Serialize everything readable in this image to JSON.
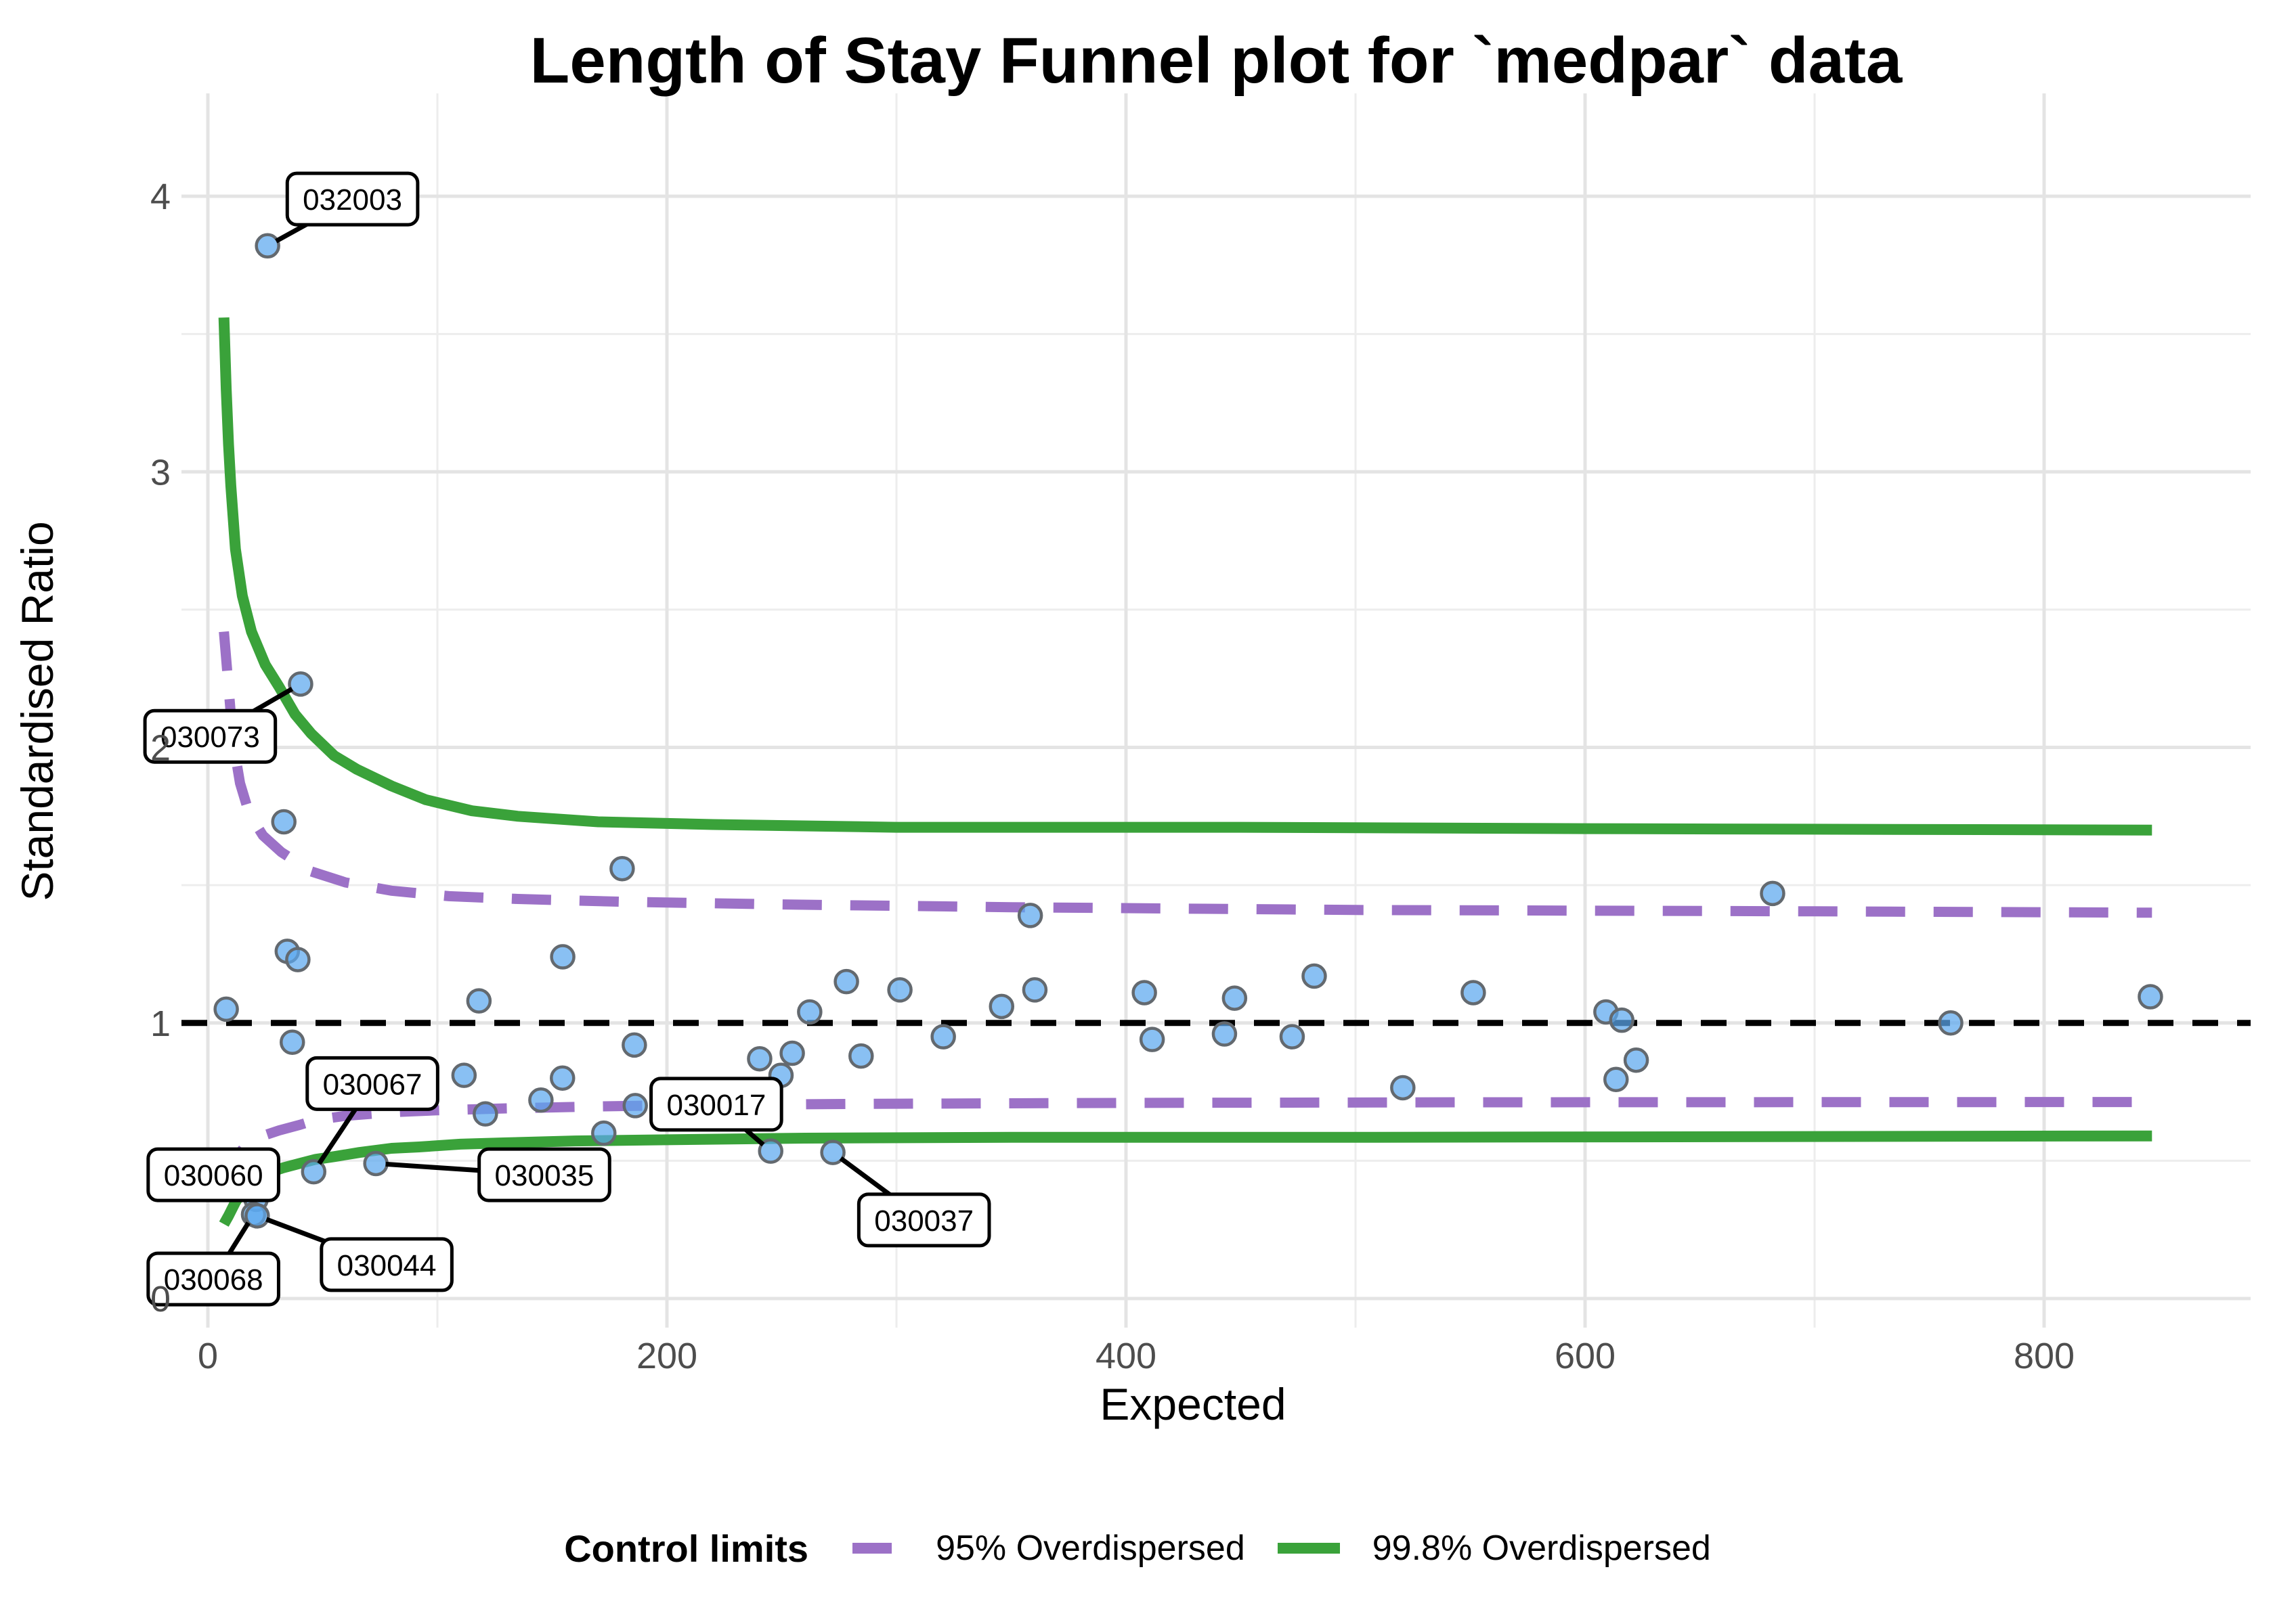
{
  "title": "Length of Stay Funnel plot for `medpar` data",
  "legend": {
    "title": "Control limits",
    "items": [
      {
        "label": "95% Overdispersed",
        "color": "#9C71C7",
        "dash": true
      },
      {
        "label": "99.8% Overdispersed",
        "color": "#3AA23A",
        "dash": false
      }
    ]
  },
  "style": {
    "limit95_color": "#9C71C7",
    "limit998_color": "#3AA23A",
    "point_fill": "#5CA7EE",
    "point_stroke": "#63696F",
    "reference_color": "#000000",
    "grid_major": "#E4E4E4",
    "grid_minor": "#EDEDED",
    "tick_color": "#4D4D4D",
    "label_box_fill": "#FFFFFF",
    "label_box_border": "#000000"
  },
  "chart_data": {
    "type": "scatter",
    "title": "Length of Stay Funnel plot for `medpar` data",
    "xlabel": "Expected",
    "ylabel": "Standardised Ratio",
    "xlim": [
      -11,
      890
    ],
    "ylim": [
      -0.1,
      4.37
    ],
    "x_ticks": [
      0,
      200,
      400,
      600,
      800
    ],
    "y_ticks": [
      0,
      1,
      2,
      3,
      4
    ],
    "x_minor": [
      100,
      300,
      500,
      700
    ],
    "y_minor": [
      0.5,
      1.5,
      2.5,
      3.5
    ],
    "grid": true,
    "legend_position": "bottom",
    "reference_line_y": 1,
    "points": [
      [
        8,
        1.05
      ],
      [
        34.6,
        1.26
      ],
      [
        39.2,
        1.23
      ],
      [
        33.1,
        1.73
      ],
      [
        36.8,
        0.93
      ],
      [
        111.6,
        0.81
      ],
      [
        118.1,
        1.08
      ],
      [
        120.9,
        0.67
      ],
      [
        145.1,
        0.72
      ],
      [
        154.5,
        0.8
      ],
      [
        154.6,
        1.24
      ],
      [
        172.5,
        0.6
      ],
      [
        180.5,
        1.56
      ],
      [
        185.8,
        0.92
      ],
      [
        186.2,
        0.7
      ],
      [
        240.4,
        0.87
      ],
      [
        249.7,
        0.81
      ],
      [
        254.6,
        0.89
      ],
      [
        262.2,
        1.04
      ],
      [
        278.2,
        1.15
      ],
      [
        284.6,
        0.88
      ],
      [
        301.5,
        1.12
      ],
      [
        320.4,
        0.95
      ],
      [
        345.8,
        1.06
      ],
      [
        358.3,
        1.39
      ],
      [
        360.3,
        1.12
      ],
      [
        408,
        1.11
      ],
      [
        411.4,
        0.94
      ],
      [
        442.9,
        0.96
      ],
      [
        447.3,
        1.09
      ],
      [
        472.4,
        0.95
      ],
      [
        482,
        1.17
      ],
      [
        520.6,
        0.765
      ],
      [
        551.3,
        1.11
      ],
      [
        609.1,
        1.04
      ],
      [
        616,
        1.01
      ],
      [
        622.3,
        0.865
      ],
      [
        613.5,
        0.795
      ],
      [
        681.7,
        1.47
      ],
      [
        759.3,
        1.0
      ],
      [
        846.3,
        1.095
      ]
    ],
    "labeled_points": [
      {
        "id": "032003",
        "x": 26,
        "y": 3.82,
        "label_at": [
          63,
          3.99
        ]
      },
      {
        "id": "030073",
        "x": 40.4,
        "y": 2.23,
        "label_at": [
          1,
          2.04
        ]
      },
      {
        "id": "030067",
        "x": 46.1,
        "y": 0.46,
        "label_at": [
          71.7,
          0.78
        ]
      },
      {
        "id": "030060",
        "x": 21,
        "y": 0.36,
        "label_at": [
          2.4,
          0.449
        ]
      },
      {
        "id": "030068",
        "x": 19.9,
        "y": 0.305,
        "label_at": [
          2.4,
          0.071
        ]
      },
      {
        "id": "030044",
        "x": 21.5,
        "y": 0.3,
        "label_at": [
          77.9,
          0.123
        ]
      },
      {
        "id": "030035",
        "x": 73.2,
        "y": 0.49,
        "label_at": [
          146.6,
          0.449
        ]
      },
      {
        "id": "030017",
        "x": 245.2,
        "y": 0.535,
        "label_at": [
          221.5,
          0.705
        ]
      },
      {
        "id": "030037",
        "x": 272.3,
        "y": 0.53,
        "label_at": [
          312,
          0.285
        ]
      }
    ],
    "control_limits": {
      "od95_upper": [
        [
          7,
          2.42
        ],
        [
          9,
          2.22
        ],
        [
          11,
          2.02
        ],
        [
          14,
          1.87
        ],
        [
          18,
          1.76
        ],
        [
          24,
          1.68
        ],
        [
          32,
          1.62
        ],
        [
          45,
          1.55
        ],
        [
          60,
          1.51
        ],
        [
          80,
          1.48
        ],
        [
          105,
          1.46
        ],
        [
          135,
          1.45
        ],
        [
          180,
          1.44
        ],
        [
          250,
          1.43
        ],
        [
          350,
          1.42
        ],
        [
          500,
          1.41
        ],
        [
          700,
          1.405
        ],
        [
          847,
          1.4
        ]
      ],
      "od95_lower": [
        [
          7,
          0.42
        ],
        [
          9,
          0.46
        ],
        [
          12,
          0.51
        ],
        [
          16,
          0.55
        ],
        [
          22,
          0.585
        ],
        [
          31,
          0.61
        ],
        [
          40,
          0.63
        ],
        [
          47,
          0.648
        ],
        [
          60,
          0.663
        ],
        [
          80,
          0.676
        ],
        [
          100,
          0.683
        ],
        [
          130,
          0.69
        ],
        [
          170,
          0.697
        ],
        [
          220,
          0.703
        ],
        [
          300,
          0.707
        ],
        [
          400,
          0.71
        ],
        [
          550,
          0.712
        ],
        [
          847,
          0.713
        ]
      ],
      "od998_upper": [
        [
          7,
          3.56
        ],
        [
          8,
          3.3
        ],
        [
          9,
          3.1
        ],
        [
          10,
          2.95
        ],
        [
          12,
          2.72
        ],
        [
          15,
          2.55
        ],
        [
          19,
          2.42
        ],
        [
          25,
          2.3
        ],
        [
          31,
          2.22
        ],
        [
          38,
          2.12
        ],
        [
          45,
          2.05
        ],
        [
          55,
          1.97
        ],
        [
          65,
          1.92
        ],
        [
          80,
          1.86
        ],
        [
          95,
          1.81
        ],
        [
          115,
          1.77
        ],
        [
          135,
          1.75
        ],
        [
          170,
          1.73
        ],
        [
          220,
          1.72
        ],
        [
          300,
          1.71
        ],
        [
          450,
          1.71
        ],
        [
          600,
          1.705
        ],
        [
          847,
          1.7
        ]
      ],
      "od998_lower": [
        [
          7,
          0.27
        ],
        [
          9,
          0.3
        ],
        [
          12,
          0.35
        ],
        [
          15,
          0.39
        ],
        [
          20,
          0.43
        ],
        [
          26,
          0.455
        ],
        [
          33,
          0.475
        ],
        [
          40,
          0.49
        ],
        [
          47,
          0.505
        ],
        [
          55,
          0.515
        ],
        [
          66,
          0.53
        ],
        [
          80,
          0.545
        ],
        [
          92,
          0.55
        ],
        [
          110,
          0.56
        ],
        [
          130,
          0.565
        ],
        [
          160,
          0.572
        ],
        [
          200,
          0.576
        ],
        [
          260,
          0.582
        ],
        [
          350,
          0.585
        ],
        [
          500,
          0.585
        ],
        [
          847,
          0.59
        ]
      ]
    }
  }
}
